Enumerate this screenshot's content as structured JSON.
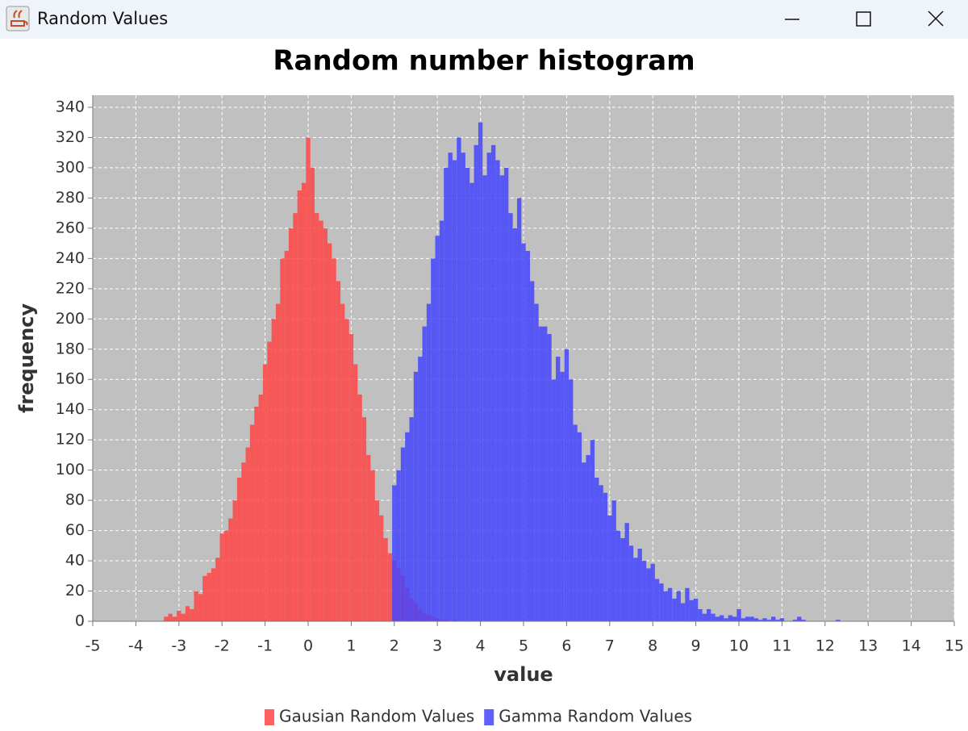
{
  "window": {
    "title": "Random Values"
  },
  "chart_data": {
    "type": "histogram",
    "title": "Random number histogram",
    "x_label": "value",
    "y_label": "frequency",
    "xlim": [
      -5,
      15
    ],
    "xticks": [
      -5,
      -4,
      -3,
      -2,
      -1,
      0,
      1,
      2,
      3,
      4,
      5,
      6,
      7,
      8,
      9,
      10,
      11,
      12,
      13,
      14,
      15
    ],
    "ylim": [
      0,
      348
    ],
    "yticks": [
      0,
      20,
      40,
      60,
      80,
      100,
      120,
      140,
      160,
      180,
      200,
      220,
      240,
      260,
      280,
      300,
      320,
      340
    ],
    "grid": true,
    "legend": "bottom",
    "series": [
      {
        "name": "Gausian Random Values",
        "color": "#ff4444",
        "bins": [
          -3.35,
          -3.25,
          -3.15,
          -3.05,
          -2.95,
          -2.85,
          -2.75,
          -2.65,
          -2.55,
          -2.45,
          -2.35,
          -2.25,
          -2.15,
          -2.05,
          -1.95,
          -1.85,
          -1.75,
          -1.65,
          -1.55,
          -1.45,
          -1.35,
          -1.25,
          -1.15,
          -1.05,
          -0.95,
          -0.85,
          -0.75,
          -0.65,
          -0.55,
          -0.45,
          -0.35,
          -0.25,
          -0.15,
          -0.05,
          0.05,
          0.15,
          0.25,
          0.35,
          0.45,
          0.55,
          0.65,
          0.75,
          0.85,
          0.95,
          1.05,
          1.15,
          1.25,
          1.35,
          1.45,
          1.55,
          1.65,
          1.75,
          1.85,
          1.95,
          2.05,
          2.15,
          2.25,
          2.35,
          2.45,
          2.55,
          2.65,
          2.75,
          2.85,
          2.95,
          3.05,
          3.15,
          3.25,
          3.35,
          3.45
        ],
        "values": [
          3,
          5,
          3,
          7,
          5,
          10,
          8,
          20,
          18,
          30,
          32,
          35,
          42,
          58,
          60,
          68,
          80,
          95,
          105,
          115,
          130,
          142,
          150,
          170,
          185,
          200,
          210,
          240,
          245,
          260,
          270,
          285,
          290,
          320,
          300,
          270,
          265,
          260,
          250,
          240,
          225,
          210,
          200,
          190,
          170,
          150,
          135,
          110,
          100,
          80,
          70,
          55,
          45,
          40,
          35,
          30,
          22,
          15,
          12,
          8,
          5,
          4,
          3,
          2,
          1,
          1,
          0,
          1
        ]
      },
      {
        "name": "Gamma Random Values",
        "color": "#4444ff",
        "bins": [
          1.95,
          2.05,
          2.15,
          2.25,
          2.35,
          2.45,
          2.55,
          2.65,
          2.75,
          2.85,
          2.95,
          3.05,
          3.15,
          3.25,
          3.35,
          3.45,
          3.55,
          3.65,
          3.75,
          3.85,
          3.95,
          4.05,
          4.15,
          4.25,
          4.35,
          4.45,
          4.55,
          4.65,
          4.75,
          4.85,
          4.95,
          5.05,
          5.15,
          5.25,
          5.35,
          5.45,
          5.55,
          5.65,
          5.75,
          5.85,
          5.95,
          6.05,
          6.15,
          6.25,
          6.35,
          6.45,
          6.55,
          6.65,
          6.75,
          6.85,
          6.95,
          7.05,
          7.15,
          7.25,
          7.35,
          7.45,
          7.55,
          7.65,
          7.75,
          7.85,
          7.95,
          8.05,
          8.15,
          8.25,
          8.35,
          8.45,
          8.55,
          8.65,
          8.75,
          8.85,
          8.95,
          9.05,
          9.15,
          9.25,
          9.35,
          9.45,
          9.55,
          9.65,
          9.75,
          9.85,
          9.95,
          10.05,
          10.15,
          10.25,
          10.35,
          10.45,
          10.55,
          10.65,
          10.75,
          10.85,
          10.95,
          11.05,
          11.15,
          11.25,
          11.35,
          11.45,
          11.55,
          11.65,
          11.75,
          11.85,
          11.95,
          12.05,
          12.15,
          12.25,
          12.35,
          12.45
        ],
        "values": [
          90,
          100,
          115,
          125,
          135,
          165,
          175,
          195,
          210,
          240,
          255,
          265,
          300,
          310,
          305,
          320,
          310,
          300,
          290,
          315,
          330,
          295,
          310,
          315,
          305,
          295,
          300,
          270,
          260,
          280,
          250,
          245,
          225,
          210,
          195,
          195,
          190,
          160,
          175,
          165,
          180,
          160,
          130,
          125,
          105,
          110,
          120,
          95,
          90,
          85,
          70,
          80,
          60,
          55,
          65,
          50,
          42,
          48,
          40,
          35,
          38,
          28,
          25,
          20,
          22,
          15,
          20,
          12,
          22,
          14,
          15,
          8,
          5,
          8,
          5,
          3,
          4,
          2,
          4,
          3,
          8,
          2,
          3,
          3,
          2,
          1,
          2,
          1,
          3,
          1,
          2,
          0,
          0,
          1,
          3,
          1,
          0,
          0,
          0,
          0,
          0,
          0,
          0,
          1,
          0
        ]
      }
    ]
  }
}
